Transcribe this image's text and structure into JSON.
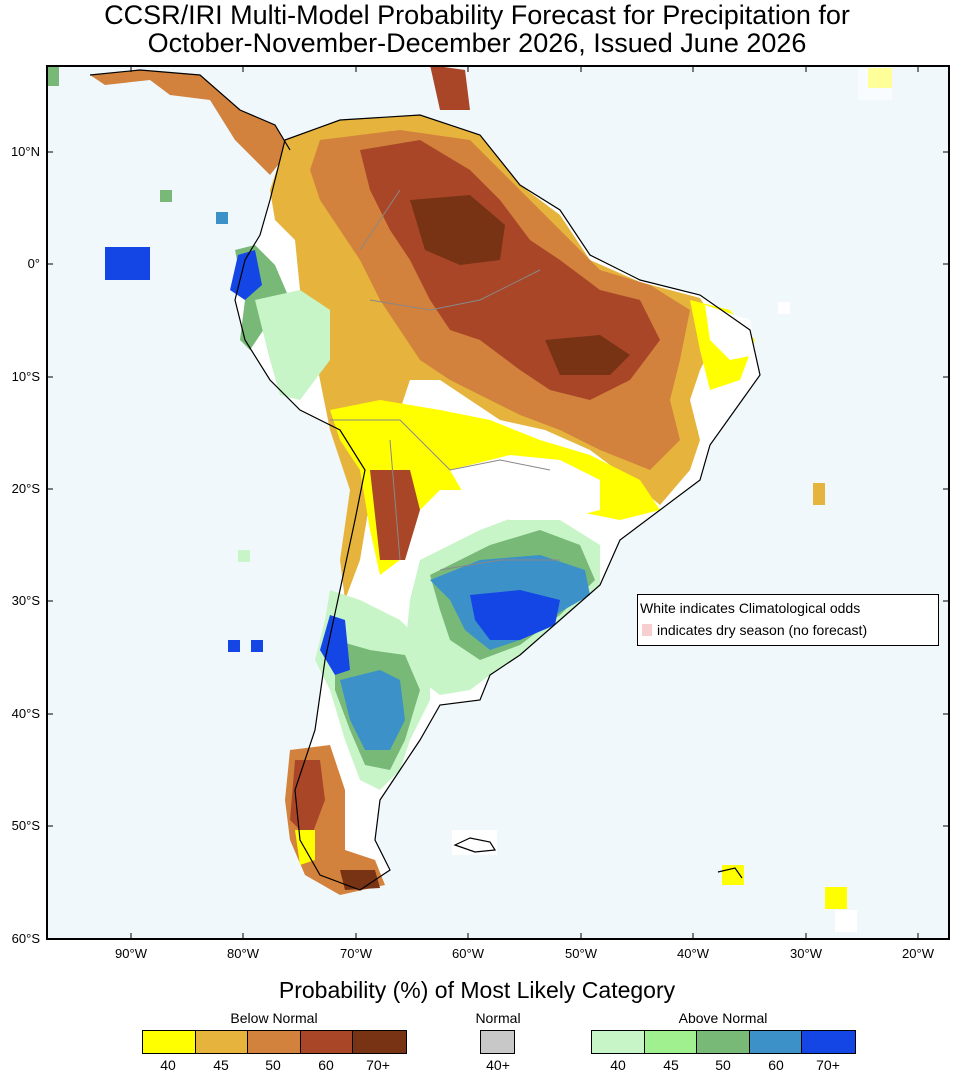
{
  "title": {
    "line1": "CCSR/IRI Multi-Model Probability Forecast for Precipitation for",
    "line2": "October-November-December 2026, Issued June 2026"
  },
  "map": {
    "ocean_color": "#f0f8fc",
    "lat_labels": [
      "10°N",
      "0°",
      "10°S",
      "20°S",
      "30°S",
      "40°S",
      "50°S",
      "60°S"
    ],
    "lon_labels": [
      "90°W",
      "80°W",
      "70°W",
      "60°W",
      "50°W",
      "40°W",
      "30°W",
      "20°W"
    ]
  },
  "note": {
    "line1": "White indicates Climatological odds",
    "line2": "indicates dry season (no forecast)",
    "dry_color": "#f7cfcf"
  },
  "legend": {
    "title": "Probability (%) of Most Likely Category",
    "below": {
      "label": "Below Normal",
      "ticks": [
        "40",
        "45",
        "50",
        "60",
        "70+"
      ],
      "colors": [
        "#ffff00",
        "#e6b43c",
        "#d2823c",
        "#aa4628",
        "#783214"
      ]
    },
    "normal": {
      "label": "Normal",
      "ticks": [
        "40+"
      ],
      "colors": [
        "#c8c8c8"
      ]
    },
    "above": {
      "label": "Above Normal",
      "ticks": [
        "40",
        "45",
        "50",
        "60",
        "70+"
      ],
      "colors": [
        "#c8f5c8",
        "#a0f090",
        "#78b978",
        "#3c91c8",
        "#1446e6"
      ]
    }
  }
}
